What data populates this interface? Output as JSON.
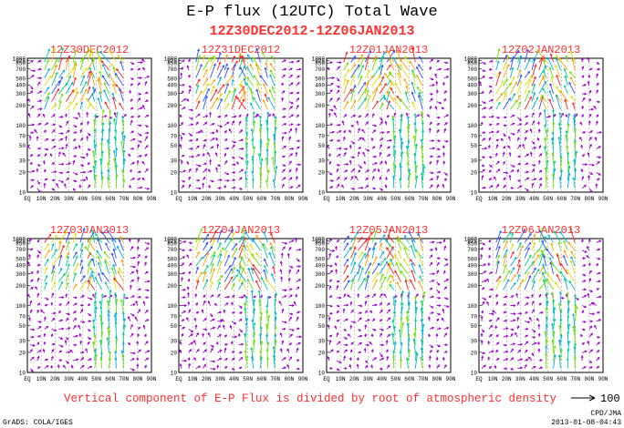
{
  "header": {
    "title": "E-P flux (12UTC) Total Wave",
    "subtitle": "12Z30DEC2012-12Z06JAN2013"
  },
  "footer": {
    "note": "Vertical component of E-P Flux is divided by root of atmospheric density",
    "ref_value": "100",
    "left_credit": "GrADS: COLA/IGES",
    "right_credit": "CPD/JMA",
    "timestamp": "2013-01-08-04:43"
  },
  "colors": {
    "title": "#000000",
    "panel_titles": "#ff3030",
    "note": "#ff3030",
    "arrow_background": "#a000d0",
    "arrow_scale": [
      "#a000d0",
      "#3050ff",
      "#00b0e0",
      "#00d090",
      "#70e000",
      "#e0e000",
      "#ffa000",
      "#ff2020"
    ]
  },
  "chart_data": {
    "type": "vector-field",
    "y_axis": {
      "ticks": [
        "10",
        "20",
        "30",
        "50",
        "70",
        "100",
        "200",
        "300",
        "400",
        "500",
        "700",
        "850",
        "925",
        "1000"
      ],
      "log_scale": true,
      "range": [
        1000,
        10
      ]
    },
    "x_axis": {
      "ticks": [
        "EQ",
        "10N",
        "20N",
        "30N",
        "40N",
        "50N",
        "60N",
        "70N",
        "80N",
        "90N"
      ],
      "range": [
        0,
        90
      ]
    },
    "reference_arrow": 100,
    "panels": [
      {
        "title": "12Z30DEC2012"
      },
      {
        "title": "12Z31DEC2012"
      },
      {
        "title": "12Z01JAN2013"
      },
      {
        "title": "12Z02JAN2013"
      },
      {
        "title": "12Z03JAN2013"
      },
      {
        "title": "12Z04JAN2013"
      },
      {
        "title": "12Z05JAN2013"
      },
      {
        "title": "12Z06JAN2013"
      }
    ]
  }
}
